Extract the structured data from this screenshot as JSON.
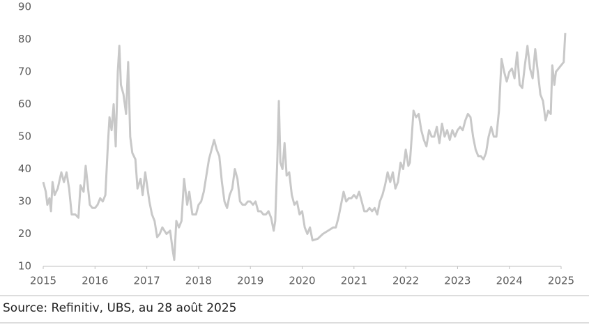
{
  "chart_data": {
    "type": "line",
    "source": "Source: Refinitiv, UBS, au 28 août 2025",
    "xlim": [
      2015,
      2025
    ],
    "xticks": [
      2015,
      2016,
      2017,
      2018,
      2019,
      2020,
      2021,
      2022,
      2023,
      2024,
      2025
    ],
    "ylim": [
      10,
      90
    ],
    "yticks": [
      10,
      20,
      30,
      40,
      50,
      60,
      70,
      80,
      90
    ],
    "grid": false,
    "series": [
      {
        "color": "#c8c8c8",
        "x": [
          2015.0,
          2015.05,
          2015.08,
          2015.12,
          2015.15,
          2015.18,
          2015.22,
          2015.28,
          2015.35,
          2015.4,
          2015.45,
          2015.5,
          2015.55,
          2015.62,
          2015.68,
          2015.72,
          2015.78,
          2015.82,
          2015.86,
          2015.9,
          2015.95,
          2016.0,
          2016.05,
          2016.1,
          2016.15,
          2016.2,
          2016.25,
          2016.28,
          2016.32,
          2016.36,
          2016.4,
          2016.44,
          2016.47,
          2016.5,
          2016.55,
          2016.6,
          2016.64,
          2016.68,
          2016.72,
          2016.78,
          2016.82,
          2016.88,
          2016.92,
          2016.97,
          2017.05,
          2017.1,
          2017.15,
          2017.2,
          2017.25,
          2017.3,
          2017.38,
          2017.45,
          2017.5,
          2017.53,
          2017.57,
          2017.62,
          2017.67,
          2017.72,
          2017.75,
          2017.78,
          2017.82,
          2017.88,
          2017.95,
          2018.0,
          2018.05,
          2018.1,
          2018.15,
          2018.2,
          2018.25,
          2018.3,
          2018.35,
          2018.4,
          2018.45,
          2018.5,
          2018.55,
          2018.6,
          2018.65,
          2018.7,
          2018.75,
          2018.8,
          2018.85,
          2018.9,
          2018.95,
          2019.0,
          2019.05,
          2019.1,
          2019.15,
          2019.2,
          2019.25,
          2019.3,
          2019.35,
          2019.4,
          2019.45,
          2019.48,
          2019.52,
          2019.55,
          2019.58,
          2019.62,
          2019.66,
          2019.7,
          2019.75,
          2019.8,
          2019.85,
          2019.9,
          2019.95,
          2020.0,
          2020.05,
          2020.1,
          2020.15,
          2020.2,
          2020.3,
          2020.4,
          2020.5,
          2020.6,
          2020.65,
          2020.7,
          2020.75,
          2020.8,
          2020.85,
          2020.9,
          2020.95,
          2021.0,
          2021.05,
          2021.1,
          2021.15,
          2021.2,
          2021.25,
          2021.3,
          2021.35,
          2021.4,
          2021.45,
          2021.5,
          2021.55,
          2021.6,
          2021.65,
          2021.7,
          2021.75,
          2021.8,
          2021.85,
          2021.9,
          2021.95,
          2022.0,
          2022.05,
          2022.08,
          2022.12,
          2022.15,
          2022.2,
          2022.25,
          2022.3,
          2022.35,
          2022.4,
          2022.45,
          2022.5,
          2022.55,
          2022.6,
          2022.65,
          2022.7,
          2022.75,
          2022.8,
          2022.85,
          2022.9,
          2022.95,
          2023.0,
          2023.05,
          2023.1,
          2023.15,
          2023.2,
          2023.25,
          2023.3,
          2023.35,
          2023.4,
          2023.45,
          2023.5,
          2023.55,
          2023.6,
          2023.65,
          2023.7,
          2023.75,
          2023.8,
          2023.85,
          2023.9,
          2023.95,
          2024.0,
          2024.05,
          2024.1,
          2024.15,
          2024.2,
          2024.25,
          2024.3,
          2024.35,
          2024.4,
          2024.45,
          2024.5,
          2024.55,
          2024.6,
          2024.65,
          2024.7,
          2024.75,
          2024.8,
          2024.83,
          2024.87,
          2024.9,
          2024.95,
          2025.0,
          2025.05,
          2025.08
        ],
        "values": [
          36,
          33,
          29,
          31,
          27,
          36,
          32,
          34,
          39,
          36,
          39,
          34,
          26,
          26,
          25,
          35,
          33,
          41,
          35,
          29,
          28,
          28,
          29,
          31,
          30,
          32,
          48,
          56,
          52,
          60,
          47,
          70,
          78,
          66,
          63,
          57,
          73,
          50,
          45,
          43,
          34,
          37,
          32,
          39,
          30,
          26,
          24,
          19,
          20,
          22,
          20,
          21,
          15,
          12,
          24,
          22,
          24,
          37,
          33,
          29,
          33,
          26,
          26,
          29,
          30,
          33,
          38,
          43,
          46,
          49,
          46,
          44,
          36,
          30,
          28,
          32,
          34,
          40,
          37,
          30,
          29,
          29,
          30,
          30,
          29,
          30,
          27,
          27,
          26,
          26,
          27,
          25,
          21,
          24,
          43,
          61,
          42,
          40,
          48,
          38,
          39,
          32,
          29,
          30,
          26,
          27,
          22,
          20,
          22,
          18,
          18.5,
          20,
          21,
          22,
          22,
          25,
          29,
          33,
          30,
          31,
          31,
          32,
          31,
          33,
          30,
          27,
          27,
          28,
          27,
          28,
          26,
          30,
          32,
          35,
          39,
          36,
          39,
          34,
          36,
          42,
          40,
          46,
          41,
          42,
          51,
          58,
          56,
          57,
          52,
          49,
          47,
          52,
          50,
          50,
          53,
          48,
          54,
          50,
          52,
          49,
          52,
          50,
          52,
          53,
          52,
          55,
          57,
          56,
          50,
          46,
          44,
          44,
          43,
          45,
          50,
          53,
          50,
          50,
          58,
          74,
          70,
          67,
          70,
          71,
          68,
          76,
          66,
          65,
          72,
          78,
          71,
          68,
          77,
          70,
          63,
          61,
          55,
          58,
          57,
          72,
          66,
          70,
          71,
          72,
          73,
          82
        ]
      }
    ]
  }
}
